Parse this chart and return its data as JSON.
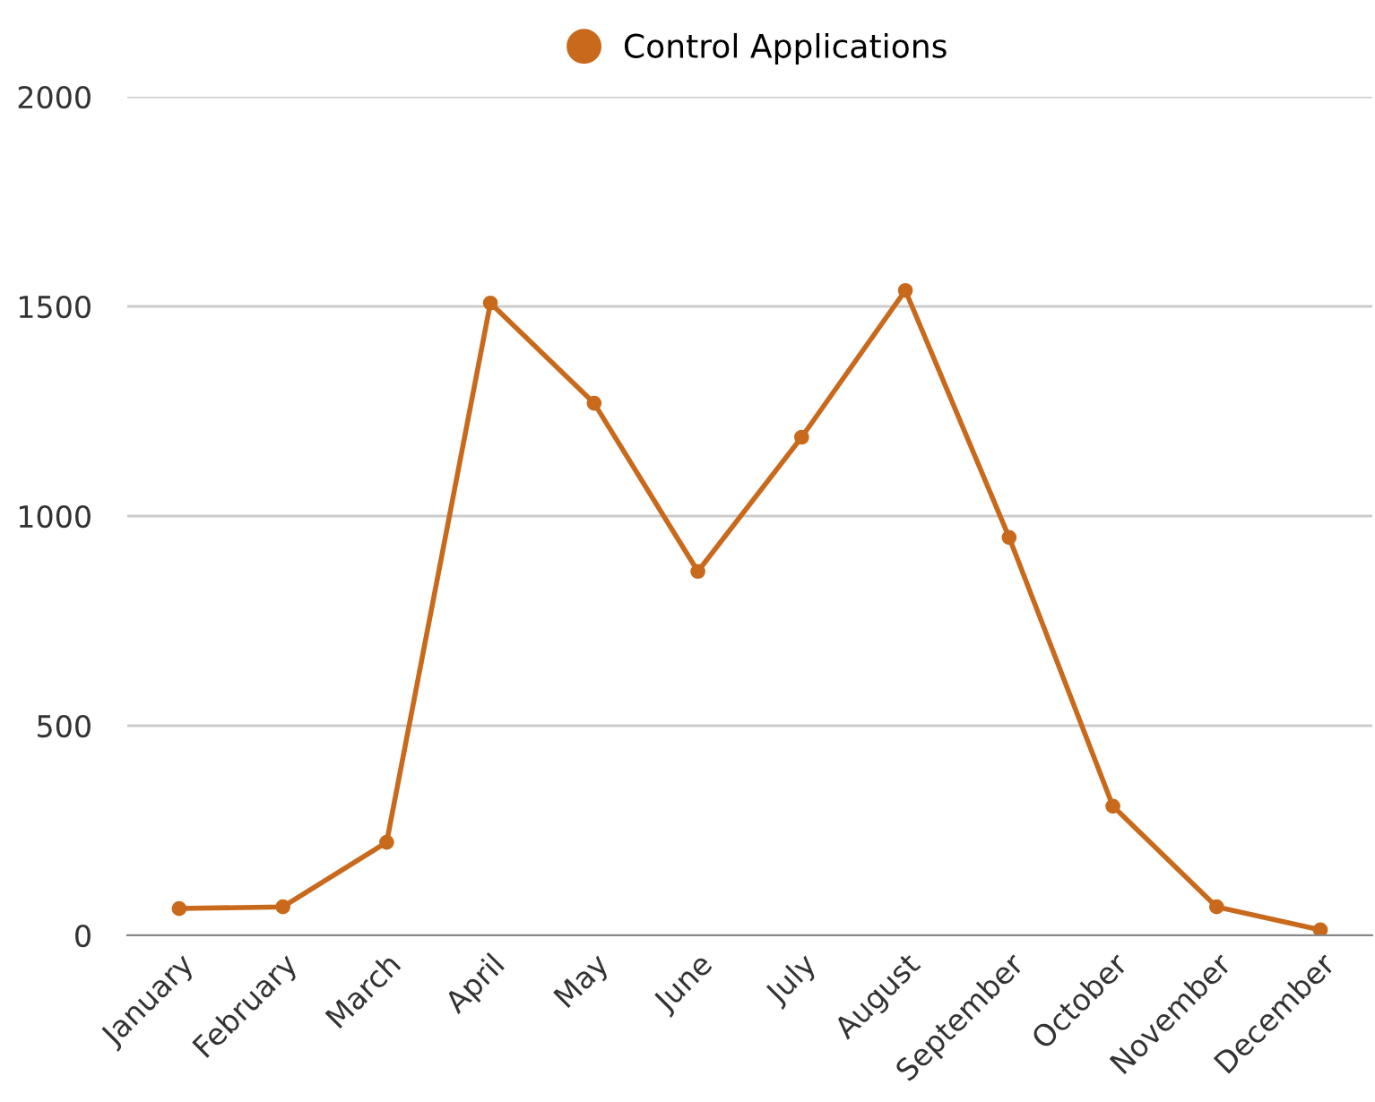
{
  "chart_data": {
    "type": "line",
    "categories": [
      "January",
      "February",
      "March",
      "April",
      "May",
      "June",
      "July",
      "August",
      "September",
      "October",
      "November",
      "December"
    ],
    "series": [
      {
        "name": "Control Applications",
        "color": "#c8691c",
        "values": [
          64,
          68,
          222,
          1508,
          1269,
          868,
          1188,
          1538,
          949,
          308,
          68,
          13
        ]
      }
    ],
    "ylim": [
      0,
      2000
    ],
    "yticks": [
      0,
      500,
      1000,
      1500,
      2000
    ],
    "grid": "y",
    "legend": "top",
    "marker": "circle",
    "line_style": "solid"
  }
}
